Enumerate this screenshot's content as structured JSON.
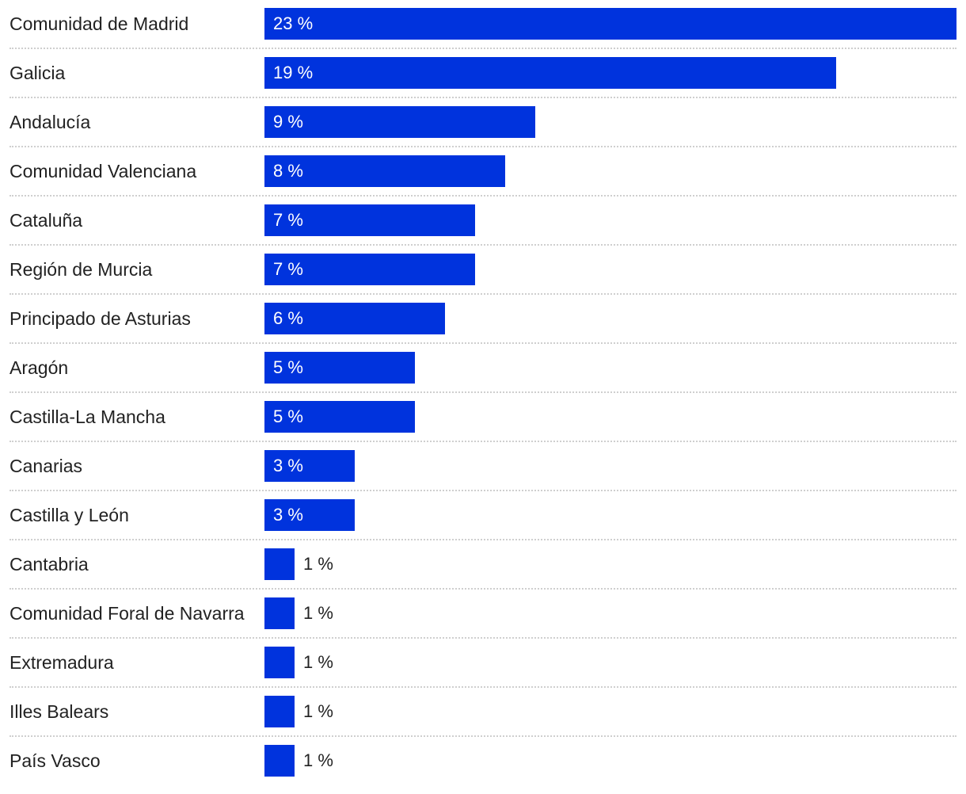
{
  "chart_data": {
    "type": "bar",
    "orientation": "horizontal",
    "title": "",
    "xlabel": "",
    "ylabel": "",
    "unit": "%",
    "xlim": [
      0,
      23
    ],
    "grid": false,
    "legend": "none",
    "bar_color": "#0033dd",
    "categories": [
      "Comunidad de Madrid",
      "Galicia",
      "Andalucía",
      "Comunidad Valenciana",
      "Cataluña",
      "Región de Murcia",
      "Principado de Asturias",
      "Aragón",
      "Castilla-La Mancha",
      "Canarias",
      "Castilla y León",
      "Cantabria",
      "Comunidad Foral de Navarra",
      "Extremadura",
      "Illes Balears",
      "País Vasco"
    ],
    "values": [
      23,
      19,
      9,
      8,
      7,
      7,
      6,
      5,
      5,
      3,
      3,
      1,
      1,
      1,
      1,
      1
    ],
    "value_labels": [
      "23 %",
      "19 %",
      "9 %",
      "8 %",
      "7 %",
      "7 %",
      "6 %",
      "5 %",
      "5 %",
      "3 %",
      "3 %",
      "1 %",
      "1 %",
      "1 %",
      "1 %",
      "1 %"
    ]
  }
}
